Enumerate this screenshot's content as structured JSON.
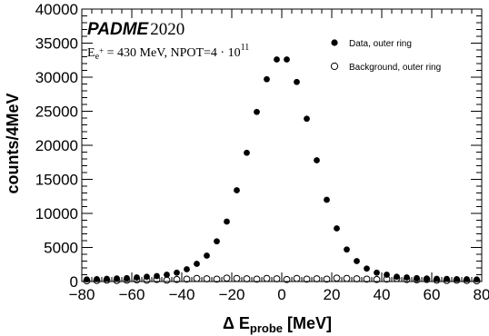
{
  "chart_data": {
    "type": "scatter",
    "title_brand": "PADME",
    "title_year": "2020",
    "info": {
      "prefix": "E",
      "subscript": "e",
      "superscript": "+",
      "middle": " = 430 MeV, NPOT=4 · 10",
      "exponent": "11"
    },
    "xlabel": {
      "prefix": "Δ E",
      "subscript": "probe",
      "suffix": " [MeV]"
    },
    "ylabel": "counts/4MeV",
    "xlim": [
      -80,
      80
    ],
    "ylim": [
      0,
      40000
    ],
    "xticks": [
      "−80",
      "−60",
      "−40",
      "−20",
      "0",
      "20",
      "40",
      "60",
      "80"
    ],
    "xtick_values": [
      -80,
      -60,
      -40,
      -20,
      0,
      20,
      40,
      60,
      80
    ],
    "yticks": [
      "0",
      "5000",
      "10000",
      "15000",
      "20000",
      "25000",
      "30000",
      "35000",
      "40000"
    ],
    "ytick_values": [
      0,
      5000,
      10000,
      15000,
      20000,
      25000,
      30000,
      35000,
      40000
    ],
    "grid": false,
    "legend_position": "top-right",
    "series": [
      {
        "name": "Data, outer ring",
        "marker": "filled-circle",
        "color": "#000000",
        "x": [
          -78,
          -74,
          -70,
          -66,
          -62,
          -58,
          -54,
          -50,
          -46,
          -42,
          -38,
          -34,
          -30,
          -26,
          -22,
          -18,
          -14,
          -10,
          -6,
          -2,
          2,
          6,
          10,
          14,
          18,
          22,
          26,
          30,
          34,
          38,
          42,
          46,
          50,
          54,
          58,
          62,
          66,
          70,
          74,
          78
        ],
        "y": [
          300,
          350,
          400,
          450,
          500,
          600,
          700,
          800,
          1000,
          1300,
          1800,
          2600,
          3800,
          5900,
          8800,
          13400,
          18900,
          24900,
          29700,
          32600,
          32600,
          29300,
          23900,
          17800,
          12000,
          7800,
          4700,
          3000,
          1900,
          1300,
          1000,
          700,
          600,
          500,
          450,
          400,
          380,
          350,
          330,
          300
        ]
      },
      {
        "name": "Background, outer ring",
        "marker": "open-circle",
        "color": "#000000",
        "x": [
          -78,
          -74,
          -70,
          -66,
          -62,
          -58,
          -54,
          -50,
          -46,
          -42,
          -38,
          -34,
          -30,
          -26,
          -22,
          -18,
          -14,
          -10,
          -6,
          -2,
          2,
          6,
          10,
          14,
          18,
          22,
          26,
          30,
          34,
          38,
          42,
          46,
          50,
          54,
          58,
          62,
          66,
          70,
          74,
          78
        ],
        "y": [
          100,
          150,
          200,
          150,
          200,
          250,
          200,
          300,
          200,
          300,
          350,
          450,
          400,
          350,
          500,
          450,
          400,
          350,
          450,
          400,
          300,
          450,
          350,
          400,
          350,
          500,
          450,
          400,
          350,
          300,
          350,
          450,
          300,
          250,
          300,
          200,
          150,
          200,
          150,
          100
        ]
      }
    ]
  }
}
